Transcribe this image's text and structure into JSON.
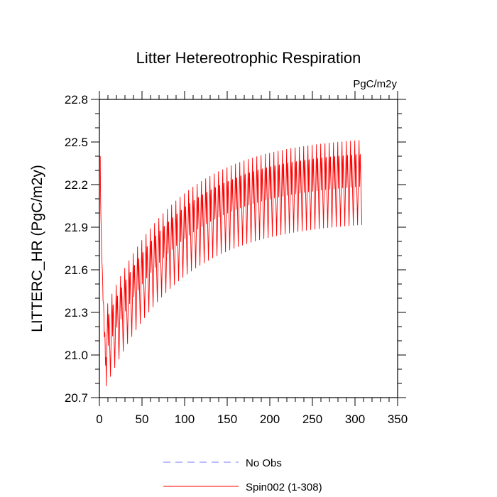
{
  "chart_data": {
    "type": "line",
    "title": "Litter Hetereotrophic Respiration",
    "units": "PgC/m2y",
    "xlabel": "",
    "ylabel": "LITTERC_HR  (PgC/m2y)",
    "xlim": [
      0,
      350
    ],
    "ylim": [
      20.7,
      22.8
    ],
    "xticks": [
      0,
      50,
      100,
      150,
      200,
      250,
      300,
      350
    ],
    "yticks": [
      20.7,
      21.0,
      21.3,
      21.6,
      21.9,
      22.2,
      22.5,
      22.8
    ],
    "xtick_labels": [
      "0",
      "50",
      "100",
      "150",
      "200",
      "250",
      "300",
      "350"
    ],
    "ytick_labels": [
      "20.7",
      "21.0",
      "21.3",
      "21.6",
      "21.9",
      "22.2",
      "22.5",
      "22.8"
    ],
    "series": [
      {
        "name": "Spin002 (1-308)",
        "color": "#ff0000",
        "style": "solid",
        "n_years": 308,
        "annual_cycle_length": 5,
        "upper_envelope_start": [
          2,
          21.25
        ],
        "upper_envelope_asymptote": 22.55,
        "lower_envelope_start": [
          8,
          20.78
        ],
        "lower_envelope_asymptote": 21.95,
        "initial_value": 22.4,
        "e_folding_years": 85
      },
      {
        "name": "No Obs",
        "color": "#7777ff",
        "style": "dashed",
        "values": []
      }
    ],
    "legend": {
      "position": "bottom-center",
      "entries": [
        "No Obs",
        "Spin002 (1-308)"
      ]
    }
  }
}
